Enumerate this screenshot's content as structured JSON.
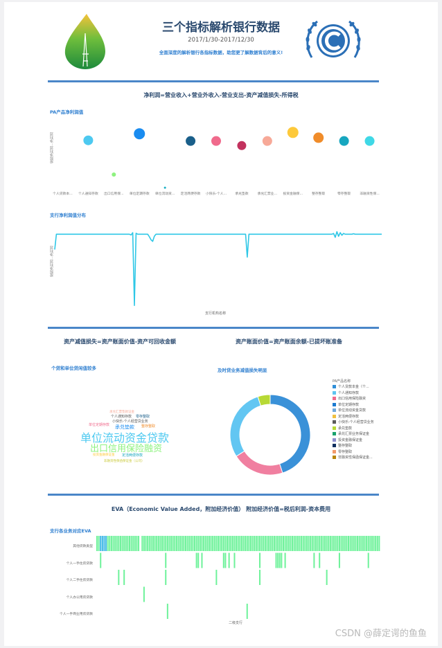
{
  "header": {
    "title": "三个指标解析银行数据",
    "date_range": "2017/1/30-2017/12/30",
    "subtitle": "全面深度的解析银行各指标数据，助您更了解数据背后的意义!"
  },
  "formulas": {
    "net_profit": "净利润=营业收入+营业外收入-营业支出-资产减值损失-所得税",
    "impairment": "资产减值损失=资产账面价值-资产可回收金额",
    "book_value": "资产账面价值=资产账面余额-已提坏账准备",
    "eva": "EVA（Economic Value Added，附加经济价值） 附加经济价值=税后利润-资本费用"
  },
  "watermark": "CSDN @薛定谔的鱼鱼",
  "colors": {
    "accent": "#4a86c8",
    "title": "#2b4a6f",
    "link": "#2f7fd0"
  },
  "chart_data": [
    {
      "type": "scatter",
      "title": "PA产品净利润值",
      "ylabel": "按照净利润…净利润",
      "categories": [
        "个人贷款本...",
        "个人通知存款",
        "出口信用保...",
        "单位定期存款",
        "单位流动资...",
        "定活两便存款",
        "小快乐-个人...",
        "承兑垫款",
        "承兑汇票业...",
        "投资金融保...",
        "整存整取",
        "零存整取",
        "非融资性保..."
      ],
      "points": [
        {
          "cat": 1,
          "value": 74,
          "color": "#4dc9f0",
          "size": 7
        },
        {
          "cat": 2,
          "value": 22,
          "color": "#8ef27f",
          "size": 3
        },
        {
          "cat": 3,
          "value": 84,
          "color": "#1a8cf0",
          "size": 8
        },
        {
          "cat": 4,
          "value": 2,
          "color": "#1bb0c4",
          "size": 1.5
        },
        {
          "cat": 5,
          "value": 73,
          "color": "#1a5f8a",
          "size": 7
        },
        {
          "cat": 6,
          "value": 73,
          "color": "#f06a8c",
          "size": 7
        },
        {
          "cat": 7,
          "value": 66,
          "color": "#c2325e",
          "size": 6.5
        },
        {
          "cat": 8,
          "value": 73,
          "color": "#f7a998",
          "size": 7
        },
        {
          "cat": 9,
          "value": 86,
          "color": "#fdc93b",
          "size": 8
        },
        {
          "cat": 10,
          "value": 78,
          "color": "#f08c2a",
          "size": 7.5
        },
        {
          "cat": 11,
          "value": 73,
          "color": "#16a6bf",
          "size": 7
        },
        {
          "cat": 12,
          "value": 73,
          "color": "#3fd8e6",
          "size": 7
        }
      ],
      "ylim": [
        0,
        100
      ]
    },
    {
      "type": "line",
      "title": "支行净利润值分布",
      "ylabel": "按照净利润…净利润",
      "xlabel": "支行机构名称",
      "values": [
        -60,
        0,
        0,
        0,
        0,
        0,
        0,
        0,
        0,
        0,
        0,
        0,
        0,
        0,
        0,
        0,
        0,
        0,
        0,
        0,
        0,
        0,
        0,
        0,
        0,
        0,
        0,
        0,
        0,
        0,
        0,
        0,
        0,
        0,
        0,
        0,
        0,
        0,
        0,
        0,
        0,
        0,
        0,
        0,
        0,
        0,
        -3,
        6,
        -280,
        4,
        0,
        0,
        0,
        0,
        0,
        0,
        0,
        -10,
        -22,
        -28,
        -8,
        0,
        0,
        0,
        0,
        0,
        0,
        0,
        0,
        0,
        0,
        0,
        0,
        0,
        0,
        0,
        0,
        0,
        0,
        0,
        0,
        0,
        0,
        0,
        0,
        0,
        0,
        0,
        0,
        0,
        0,
        0,
        0,
        0,
        0,
        0,
        0,
        0,
        0,
        0,
        0,
        0,
        0,
        0,
        0,
        0,
        0,
        0,
        0,
        0,
        0,
        0,
        0,
        0,
        0,
        0,
        -90,
        0,
        0,
        0,
        0,
        0,
        0,
        0,
        0,
        0,
        0,
        0,
        0,
        0,
        0,
        0,
        0,
        0,
        0,
        0,
        0,
        0,
        0,
        0,
        0,
        0,
        0,
        0,
        0,
        0,
        0,
        0,
        0,
        0,
        0,
        0,
        0,
        0,
        0,
        0,
        0,
        0,
        0,
        0,
        0,
        0,
        0,
        0,
        0,
        0,
        0,
        0,
        3,
        -12,
        10,
        -8,
        6,
        -4,
        3,
        0,
        0,
        0,
        0,
        0,
        2,
        0,
        0,
        0,
        0,
        0,
        0,
        0,
        0,
        0,
        0,
        0,
        0,
        0,
        0,
        0,
        0,
        0
      ]
    },
    {
      "type": "other",
      "subtype": "wordcloud",
      "title": "个贷和单位贷闲值较多",
      "words": [
        {
          "text": "承兑汇票垫款证金",
          "size": 4.5,
          "color": "#f7a998"
        },
        {
          "text": "个人通知存款",
          "size": 5,
          "color": "#555555"
        },
        {
          "text": "零存整取",
          "size": 5,
          "color": "#1a5f8a"
        },
        {
          "text": "小快乐-个人经营贷业务",
          "size": 5,
          "color": "#555555"
        },
        {
          "text": "单位定期存款",
          "size": 5,
          "color": "#f06a8c"
        },
        {
          "text": "承兑垫款",
          "size": 7,
          "color": "#1a8cf0"
        },
        {
          "text": "整存整取",
          "size": 5,
          "color": "#f08c2a"
        },
        {
          "text": "单位流动资金贷款",
          "size": 16,
          "color": "#4dc9f0"
        },
        {
          "text": "出口信用保险融资",
          "size": 13,
          "color": "#8ef27f"
        },
        {
          "text": "投资金融保证金",
          "size": 4.5,
          "color": "#fdc93b"
        },
        {
          "text": "定活两便存款",
          "size": 5,
          "color": "#16a6bf"
        },
        {
          "text": "非融资性保函保证金（公司）",
          "size": 4.5,
          "color": "#c9c93a"
        }
      ]
    },
    {
      "type": "pie",
      "subtype": "donut",
      "title": "及时贷业务减值损失明显",
      "legend_title": "PA产品名称",
      "legend": [
        {
          "name": "个人贷款本金（个...",
          "color": "#2f8fd8"
        },
        {
          "name": "个人通知存款",
          "color": "#5dc4f0"
        },
        {
          "name": "出口信用保险融资",
          "color": "#f06a8c"
        },
        {
          "name": "单位定期存款",
          "color": "#1a7ad0"
        },
        {
          "name": "单位流动资金贷款",
          "color": "#6fa8dc"
        },
        {
          "name": "定活两便存款",
          "color": "#f0c040"
        },
        {
          "name": "小快乐-个人经营贷业务",
          "color": "#5a5a5a"
        },
        {
          "name": "承兑垫款",
          "color": "#b7d935"
        },
        {
          "name": "承兑汇票业务保证金",
          "color": "#1aa36d"
        },
        {
          "name": "投资金融保证金",
          "color": "#8e8ece"
        },
        {
          "name": "整存整取",
          "color": "#0f2f5f"
        },
        {
          "name": "零存整取",
          "color": "#f29a6a"
        },
        {
          "name": "非融资性保函保证金...",
          "color": "#b8860b"
        }
      ],
      "slices": [
        {
          "name": "个人贷款本金（个...",
          "value": 45,
          "color": "#3a91d8"
        },
        {
          "name": "出口信用保险融资",
          "value": 21,
          "color": "#f07fa0"
        },
        {
          "name": "个人通知存款",
          "value": 29,
          "color": "#62c6f2"
        },
        {
          "name": "承兑垫款",
          "value": 5,
          "color": "#b7d935"
        }
      ]
    },
    {
      "type": "heatmap",
      "title": "支行各业务对应EVA",
      "xlabel": "二级支行",
      "rows": [
        "其他贷款类型",
        "个人一手住房贷款",
        "个人二手住房贷款",
        "个人办公用房贷款",
        "个人一手商业用房贷款"
      ],
      "row_cells": [
        [
          0,
          1,
          2,
          3,
          4,
          5,
          6,
          7,
          8,
          9,
          10,
          11,
          12,
          13,
          14,
          15,
          16,
          17,
          18,
          19,
          20,
          21,
          22,
          23,
          25,
          26,
          27,
          28,
          29,
          30,
          31,
          32,
          33,
          34,
          35,
          36,
          37,
          38,
          39,
          40,
          41,
          42,
          43,
          44,
          45,
          46,
          47,
          48,
          49,
          50,
          51,
          52,
          53,
          54,
          55,
          56,
          57,
          58,
          59,
          60,
          61,
          62,
          63,
          64,
          65,
          66,
          67,
          68,
          69,
          70,
          71,
          72,
          73,
          74,
          75,
          76,
          77,
          78,
          79,
          80,
          81,
          82,
          83,
          84,
          85,
          86,
          87,
          88,
          89,
          90,
          91,
          92,
          93,
          94,
          95,
          96,
          97,
          98,
          99,
          100,
          101,
          102,
          103,
          104,
          105,
          106,
          107,
          108,
          109,
          110,
          111,
          112,
          113,
          114,
          115,
          116,
          117,
          118,
          119,
          120,
          121,
          122,
          123,
          124,
          125,
          126,
          127,
          128,
          129,
          130,
          131,
          132,
          133,
          134,
          135,
          136,
          137,
          138,
          139,
          140,
          141,
          142,
          143,
          144,
          145,
          146,
          147,
          148,
          149,
          150,
          151,
          152,
          153,
          154,
          155,
          156
        ],
        [
          2,
          38,
          55,
          56,
          58,
          70,
          71,
          73,
          76,
          90,
          99,
          100,
          101,
          102,
          104,
          120,
          123,
          134,
          150
        ],
        [
          12,
          15,
          38,
          66,
          90,
          127
        ],
        [
          26
        ],
        [
          39,
          83
        ]
      ],
      "highlight_cells": [
        [
          0,
          2
        ],
        [
          0,
          3
        ],
        [
          0,
          4
        ],
        [
          0,
          5
        ]
      ]
    }
  ]
}
